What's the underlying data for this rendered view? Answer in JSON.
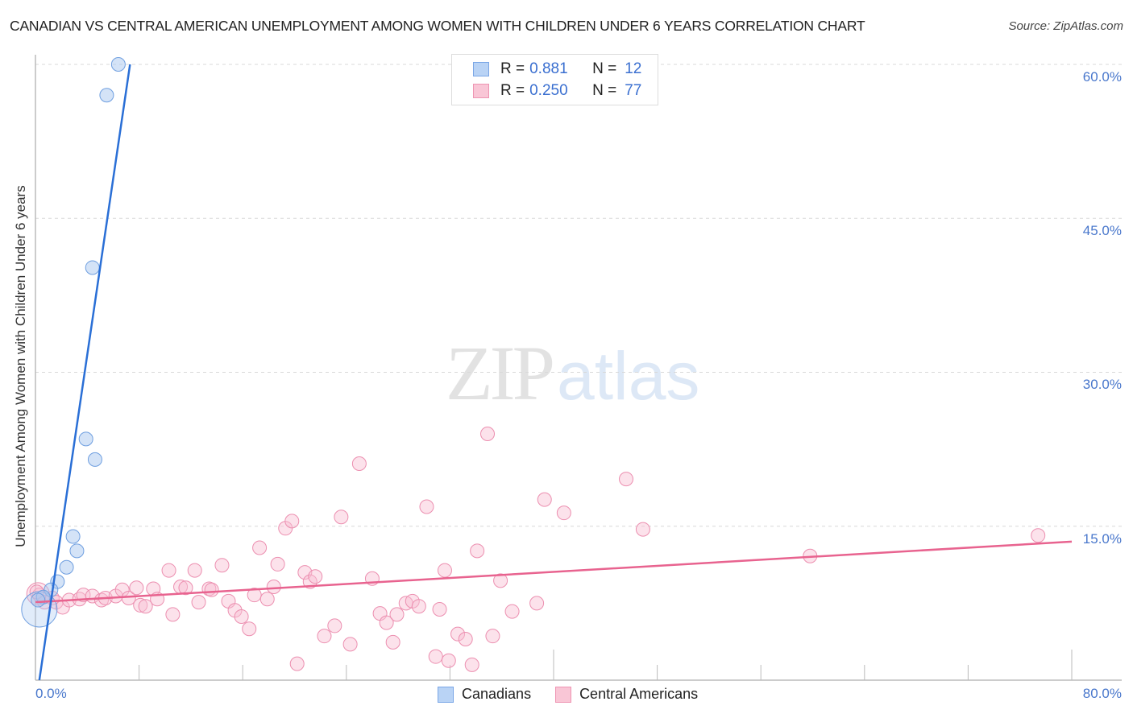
{
  "header": {
    "title": "CANADIAN VS CENTRAL AMERICAN UNEMPLOYMENT AMONG WOMEN WITH CHILDREN UNDER 6 YEARS CORRELATION CHART",
    "source": "Source: ZipAtlas.com"
  },
  "watermark": {
    "zip": "ZIP",
    "atlas": "atlas"
  },
  "legend_top": {
    "rows": [
      {
        "r_label": "R =",
        "r_value": "0.881",
        "n_label": "N =",
        "n_value": "12",
        "swatch_fill": "#b9d3f5",
        "swatch_border": "#7aa6e6"
      },
      {
        "r_label": "R =",
        "r_value": "0.250",
        "n_label": "N =",
        "n_value": "77",
        "swatch_fill": "#f9c6d6",
        "swatch_border": "#ee94b2"
      }
    ]
  },
  "axes": {
    "y_ticks": [
      "60.0%",
      "45.0%",
      "30.0%",
      "15.0%"
    ],
    "x_left": "0.0%",
    "x_right": "80.0%",
    "y_label": "Unemployment Among Women with Children Under 6 years"
  },
  "legend_bottom": {
    "items": [
      {
        "label": "Canadians",
        "fill": "#b9d3f5",
        "border": "#7aa6e6"
      },
      {
        "label": "Central Americans",
        "fill": "#f9c6d6",
        "border": "#ee94b2"
      }
    ]
  },
  "colors": {
    "blue_line": "#2a6fd6",
    "pink_line": "#e8638f",
    "blue_fill": "rgba(170,200,240,0.5)",
    "blue_stroke": "#6f9fe0",
    "pink_fill": "rgba(248,190,210,0.45)",
    "pink_stroke": "#ec8fb0",
    "grid": "#d8d8d8",
    "axis": "#bbbbbb"
  },
  "chart_data": {
    "type": "scatter",
    "title": "CANADIAN VS CENTRAL AMERICAN UNEMPLOYMENT AMONG WOMEN WITH CHILDREN UNDER 6 YEARS CORRELATION CHART",
    "xlabel": "",
    "ylabel": "Unemployment Among Women with Children Under 6 years",
    "xlim": [
      0,
      80
    ],
    "ylim": [
      0,
      60
    ],
    "x_tick_labels": [
      "0.0%",
      "80.0%"
    ],
    "y_tick_labels": [
      "15.0%",
      "30.0%",
      "45.0%",
      "60.0%"
    ],
    "grid": true,
    "legend_position": "top-center and bottom",
    "series": [
      {
        "name": "Canadians",
        "R": 0.881,
        "N": 12,
        "points": [
          [
            6.4,
            60.0
          ],
          [
            5.5,
            57.0
          ],
          [
            4.4,
            40.2
          ],
          [
            3.9,
            23.5
          ],
          [
            4.6,
            21.5
          ],
          [
            2.9,
            14.0
          ],
          [
            3.2,
            12.6
          ],
          [
            2.4,
            11.0
          ],
          [
            1.7,
            9.6
          ],
          [
            1.2,
            8.8
          ],
          [
            0.6,
            8.1
          ],
          [
            0.2,
            7.8
          ]
        ],
        "trend": {
          "x0": 0.3,
          "y0": 0.0,
          "x1": 7.3,
          "y1": 60.0
        }
      },
      {
        "name": "Central Americans",
        "R": 0.25,
        "N": 77,
        "points": [
          [
            0.3,
            8.3
          ],
          [
            0.7,
            7.6
          ],
          [
            1.3,
            8.0
          ],
          [
            1.6,
            7.6
          ],
          [
            2.1,
            7.1
          ],
          [
            2.6,
            7.8
          ],
          [
            3.4,
            7.9
          ],
          [
            3.7,
            8.3
          ],
          [
            4.4,
            8.2
          ],
          [
            5.1,
            7.8
          ],
          [
            5.4,
            8.0
          ],
          [
            6.2,
            8.2
          ],
          [
            6.7,
            8.8
          ],
          [
            7.2,
            8.0
          ],
          [
            7.8,
            9.0
          ],
          [
            8.1,
            7.3
          ],
          [
            8.5,
            7.2
          ],
          [
            9.1,
            8.9
          ],
          [
            9.4,
            7.9
          ],
          [
            10.3,
            10.7
          ],
          [
            10.6,
            6.4
          ],
          [
            11.2,
            9.1
          ],
          [
            11.6,
            9.0
          ],
          [
            12.3,
            10.7
          ],
          [
            12.6,
            7.6
          ],
          [
            13.4,
            8.9
          ],
          [
            13.6,
            8.8
          ],
          [
            14.4,
            11.2
          ],
          [
            14.9,
            7.7
          ],
          [
            15.4,
            6.8
          ],
          [
            15.9,
            6.2
          ],
          [
            16.5,
            5.0
          ],
          [
            16.9,
            8.3
          ],
          [
            17.3,
            12.9
          ],
          [
            17.9,
            7.9
          ],
          [
            18.4,
            9.1
          ],
          [
            18.7,
            11.3
          ],
          [
            19.3,
            14.8
          ],
          [
            19.8,
            15.5
          ],
          [
            20.2,
            1.6
          ],
          [
            20.8,
            10.5
          ],
          [
            21.2,
            9.6
          ],
          [
            21.6,
            10.1
          ],
          [
            22.3,
            4.3
          ],
          [
            23.1,
            5.3
          ],
          [
            23.6,
            15.9
          ],
          [
            24.3,
            3.5
          ],
          [
            25.0,
            21.1
          ],
          [
            26.0,
            9.9
          ],
          [
            26.6,
            6.5
          ],
          [
            27.1,
            5.6
          ],
          [
            27.6,
            3.7
          ],
          [
            27.9,
            6.4
          ],
          [
            28.6,
            7.5
          ],
          [
            29.1,
            7.7
          ],
          [
            29.6,
            7.2
          ],
          [
            30.2,
            16.9
          ],
          [
            30.9,
            2.3
          ],
          [
            31.2,
            6.9
          ],
          [
            31.6,
            10.7
          ],
          [
            31.9,
            1.9
          ],
          [
            32.6,
            4.5
          ],
          [
            33.2,
            4.0
          ],
          [
            33.7,
            1.5
          ],
          [
            34.1,
            12.6
          ],
          [
            34.9,
            24.0
          ],
          [
            35.3,
            4.3
          ],
          [
            35.9,
            9.7
          ],
          [
            36.8,
            6.7
          ],
          [
            38.7,
            7.5
          ],
          [
            39.3,
            17.6
          ],
          [
            40.8,
            16.3
          ],
          [
            45.6,
            19.6
          ],
          [
            46.9,
            14.7
          ],
          [
            59.8,
            12.1
          ],
          [
            77.4,
            14.1
          ],
          [
            0.1,
            8.6
          ]
        ],
        "trend": {
          "x0": 0.0,
          "y0": 7.6,
          "x1": 80.0,
          "y1": 13.5
        }
      }
    ]
  }
}
